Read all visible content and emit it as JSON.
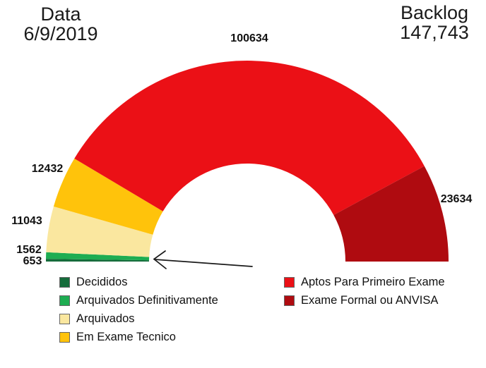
{
  "header": {
    "date_label": "Data",
    "date_value": "6/9/2019",
    "backlog_label": "Backlog",
    "backlog_value": "147,743"
  },
  "chart_data": {
    "type": "pie",
    "shape": "semicircle-donut",
    "start_angle_deg": 180,
    "sweep_deg": 180,
    "total_of_segments": 149958,
    "legend_position": "bottom",
    "annotation": "arrow pointing to the thin green slices (Decididos / Arquivados Definitivamente)",
    "segments": [
      {
        "label": "Decididos",
        "value": 653,
        "color": "#156C3B"
      },
      {
        "label": "Arquivados Definitivamente",
        "value": 1562,
        "color": "#1EAD52"
      },
      {
        "label": "Arquivados",
        "value": 11043,
        "color": "#FAE79F"
      },
      {
        "label": "Em Exame Tecnico",
        "value": 12432,
        "color": "#FFC30B"
      },
      {
        "label": "Aptos Para Primeiro Exame",
        "value": 100634,
        "color": "#EB1016"
      },
      {
        "label": "Exame Formal ou ANVISA",
        "value": 23634,
        "color": "#AF0B10"
      }
    ]
  }
}
